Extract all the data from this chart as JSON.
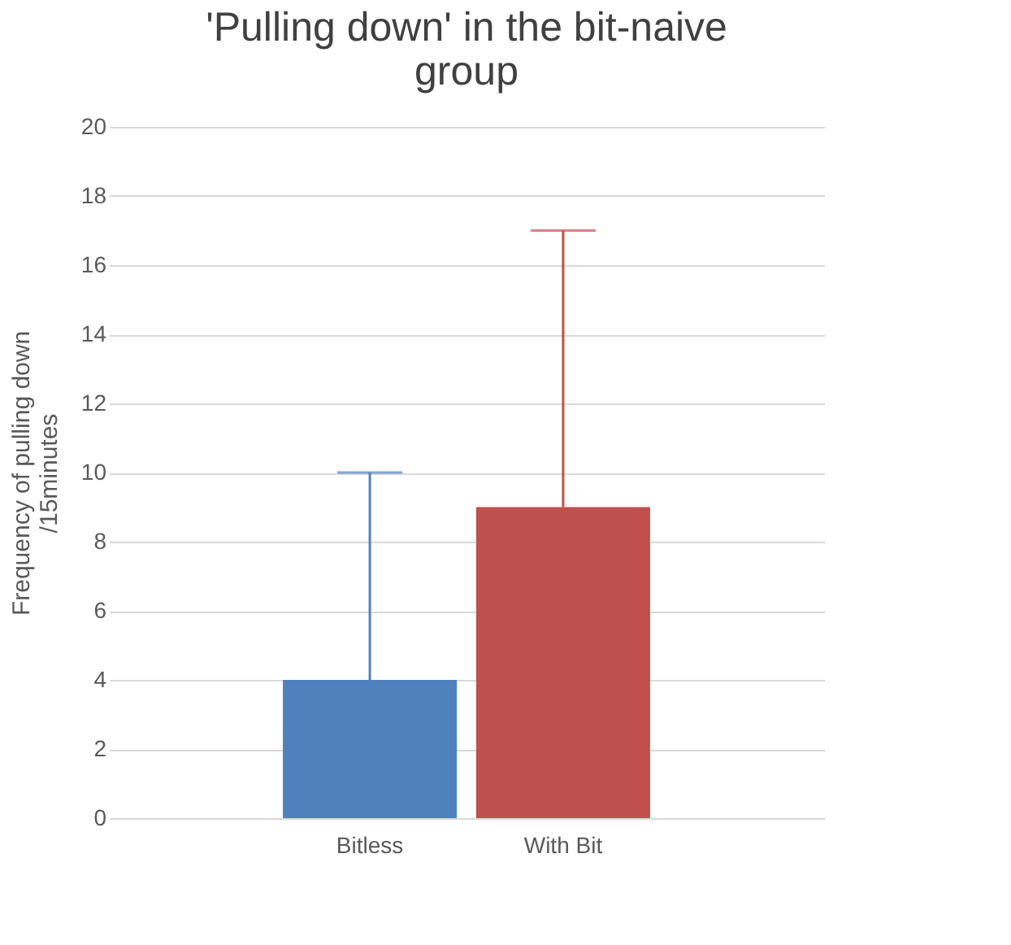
{
  "chart_data": {
    "type": "bar",
    "title": "'Pulling down' in the bit-naive group",
    "ylabel": "Frequency of pulling down /15minutes",
    "categories": [
      "Bitless",
      "With Bit"
    ],
    "values": [
      4,
      9
    ],
    "colors": [
      "#4f81bd",
      "#c0504d"
    ],
    "errors": [
      [
        4,
        10
      ],
      [
        9,
        17
      ]
    ],
    "ylim": [
      0,
      20
    ],
    "yticks": [
      0,
      2,
      4,
      6,
      8,
      10,
      12,
      14,
      16,
      18,
      20
    ],
    "grid": "y",
    "legend": false
  }
}
